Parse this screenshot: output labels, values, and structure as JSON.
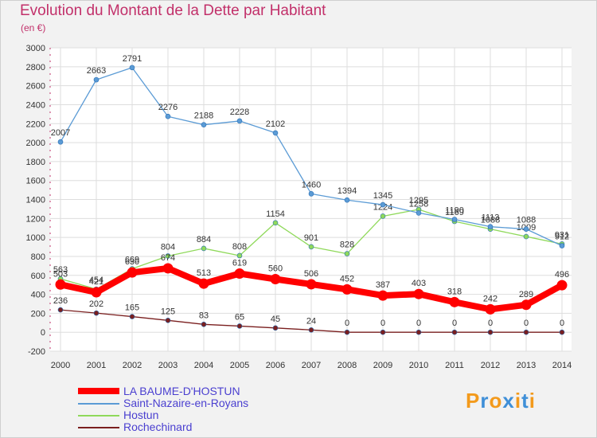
{
  "title": "Evolution du Montant de la Dette par Habitant",
  "subtitle": "(en €)",
  "logo": {
    "text": "Proxiti",
    "letters": [
      {
        "ch": "P",
        "color": "#f39a1c"
      },
      {
        "ch": "r",
        "color": "#3f8fd8"
      },
      {
        "ch": "o",
        "color": "#f39a1c"
      },
      {
        "ch": "x",
        "color": "#3f8fd8"
      },
      {
        "ch": "i",
        "color": "#f39a1c"
      },
      {
        "ch": "t",
        "color": "#3f8fd8"
      },
      {
        "ch": "i",
        "color": "#f39a1c"
      }
    ]
  },
  "chart_data": {
    "type": "line",
    "x": [
      "2000",
      "2001",
      "2002",
      "2003",
      "2004",
      "2005",
      "2006",
      "2007",
      "2008",
      "2009",
      "2010",
      "2011",
      "2012",
      "2013",
      "2014"
    ],
    "ylim": [
      -200,
      3000
    ],
    "yticks": [
      -200,
      0,
      200,
      400,
      600,
      800,
      1000,
      1200,
      1400,
      1600,
      1800,
      2000,
      2200,
      2400,
      2600,
      2800,
      3000
    ],
    "grid": true,
    "legend_position": "bottom-left",
    "series": [
      {
        "name": "Rochechinard",
        "color": "#7a1f1f",
        "values": [
          236,
          202,
          165,
          125,
          83,
          65,
          45,
          24,
          0,
          0,
          0,
          0,
          0,
          0,
          0
        ]
      },
      {
        "name": "Hostun",
        "color": "#8fd95a",
        "values": [
          563,
          454,
          669,
          804,
          884,
          808,
          1154,
          901,
          828,
          1224,
          1295,
          1169,
          1088,
          1009,
          931
        ]
      },
      {
        "name": "Saint-Nazaire-en-Royans",
        "color": "#5b9bd5",
        "values": [
          2007,
          2663,
          2791,
          2276,
          2188,
          2228,
          2102,
          1460,
          1394,
          1345,
          1258,
          1190,
          1113,
          1088,
          912
        ]
      },
      {
        "name": "LA BAUME-D'HOSTUN",
        "color": "#ff0000",
        "values": [
          503,
          421,
          630,
          674,
          513,
          619,
          560,
          506,
          452,
          387,
          403,
          318,
          242,
          289,
          496
        ]
      }
    ],
    "legend_order": [
      "LA BAUME-D'HOSTUN",
      "Saint-Nazaire-en-Royans",
      "Hostun",
      "Rochechinard"
    ]
  }
}
